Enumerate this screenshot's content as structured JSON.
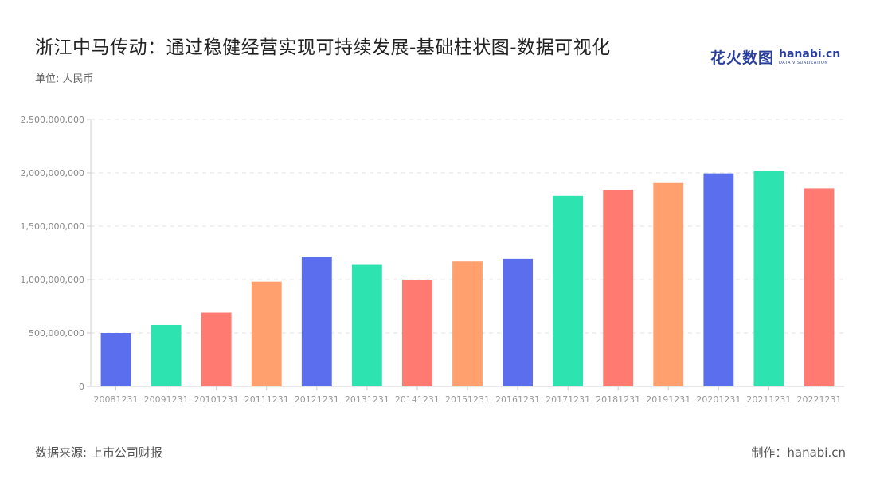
{
  "header": {
    "title": "浙江中马传动：通过稳健经营实现可持续发展-基础柱状图-数据可视化",
    "unit": "单位: 人民币"
  },
  "logo": {
    "cn": "花火数图",
    "en": "hanabi.cn",
    "sub": "DATA VISUALIZATION"
  },
  "footer": {
    "source": "数据来源: 上市公司财报",
    "credit": "制作：hanabi.cn"
  },
  "colors": [
    "#5b6fee",
    "#2de3b0",
    "#ff7a70",
    "#ffa06e"
  ],
  "chart_data": {
    "type": "bar",
    "categories": [
      "20081231",
      "20091231",
      "20101231",
      "20111231",
      "20121231",
      "20131231",
      "20141231",
      "20151231",
      "20161231",
      "20171231",
      "20181231",
      "20191231",
      "20201231",
      "20211231",
      "20221231"
    ],
    "values": [
      500000000,
      575000000,
      690000000,
      980000000,
      1215000000,
      1145000000,
      1000000000,
      1170000000,
      1195000000,
      1785000000,
      1840000000,
      1905000000,
      1995000000,
      2015000000,
      1855000000
    ],
    "ylim": [
      0,
      2500000000
    ],
    "yticks": [
      "0",
      "500,000,000",
      "1,000,000,000",
      "1,500,000,000",
      "2,000,000,000",
      "2,500,000,000"
    ],
    "ytick_values": [
      0,
      500000000,
      1000000000,
      1500000000,
      2000000000,
      2500000000
    ],
    "grid": true,
    "legend": "none"
  }
}
